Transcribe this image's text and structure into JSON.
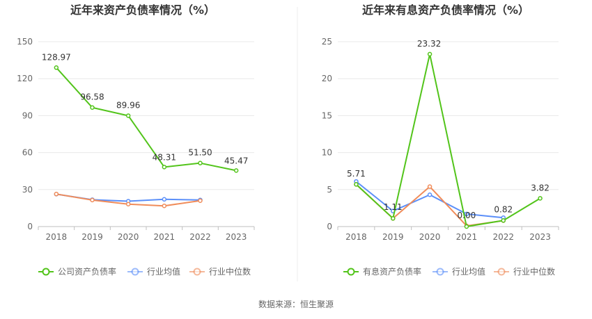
{
  "source_label": "数据来源：恒生聚源",
  "chart_data": [
    {
      "type": "line",
      "title": "近年来资产负债率情况（%）",
      "categories": [
        "2018",
        "2019",
        "2020",
        "2021",
        "2022",
        "2023"
      ],
      "ylim": [
        0,
        150
      ],
      "yticks": [
        "0",
        "30",
        "60",
        "90",
        "120",
        "150"
      ],
      "grid": true,
      "legend_position": "bottom",
      "series": [
        {
          "name": "公司资产负债率",
          "color": "#52c41a",
          "values": [
            128.97,
            96.58,
            89.96,
            48.31,
            51.5,
            45.47
          ],
          "labels": [
            "128.97",
            "96.58",
            "89.96",
            "48.31",
            "51.50",
            "45.47"
          ]
        },
        {
          "name": "行业均值",
          "color": "#5b8ff9",
          "values": [
            26.3,
            21.8,
            20.6,
            22.1,
            21.6,
            null
          ]
        },
        {
          "name": "行业中位数",
          "color": "#f08c5a",
          "values": [
            26.4,
            21.5,
            18.2,
            16.8,
            21.0,
            null
          ]
        }
      ]
    },
    {
      "type": "line",
      "title": "近年来有息资产负债率情况（%）",
      "categories": [
        "2018",
        "2019",
        "2020",
        "2021",
        "2022",
        "2023"
      ],
      "ylim": [
        0,
        25
      ],
      "yticks": [
        "0",
        "5",
        "10",
        "15",
        "20",
        "25"
      ],
      "grid": true,
      "legend_position": "bottom",
      "series": [
        {
          "name": "有息资产负债率",
          "color": "#52c41a",
          "values": [
            5.71,
            1.11,
            23.32,
            0.0,
            0.82,
            3.82
          ],
          "labels": [
            "5.71",
            "1.11",
            "23.32",
            "0.00",
            "0.82",
            "3.82"
          ]
        },
        {
          "name": "行业均值",
          "color": "#5b8ff9",
          "values": [
            6.1,
            2.1,
            4.3,
            1.7,
            1.2,
            null
          ]
        },
        {
          "name": "行业中位数",
          "color": "#f08c5a",
          "values": [
            5.7,
            1.1,
            5.4,
            0.1,
            0.8,
            null
          ]
        }
      ]
    }
  ]
}
